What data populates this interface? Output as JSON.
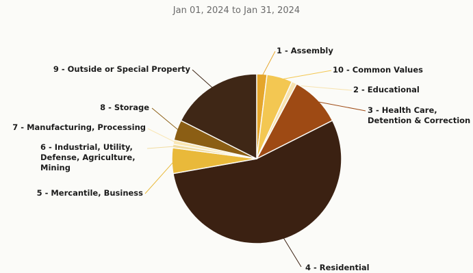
{
  "chart_data": {
    "type": "pie",
    "title": "",
    "subtitle": "Jan 01, 2024 to Jan 31, 2024",
    "slices": [
      {
        "id": "assembly",
        "label": [
          "1 - Assembly"
        ],
        "value": 2,
        "color": "#e5a62c"
      },
      {
        "id": "common-values",
        "label": [
          "10 - Common Values"
        ],
        "value": 5,
        "color": "#f3c752"
      },
      {
        "id": "educational",
        "label": [
          "2 - Educational"
        ],
        "value": 1,
        "color": "#f7e3b0"
      },
      {
        "id": "health-care",
        "label": [
          "3 - Health Care,",
          "Detention & Correction"
        ],
        "value": 10,
        "color": "#9e4a14"
      },
      {
        "id": "residential",
        "label": [
          "4 - Residential"
        ],
        "value": 56,
        "color": "#3b2112"
      },
      {
        "id": "mercantile",
        "label": [
          "5 - Mercantile, Business"
        ],
        "value": 5,
        "color": "#e9b93a"
      },
      {
        "id": "industrial",
        "label": [
          "6 - Industrial, Utility,",
          "Defense, Agriculture,",
          "Mining"
        ],
        "value": 0.7,
        "color": "#f1dca0"
      },
      {
        "id": "manufacturing",
        "label": [
          "7 - Manufacturing, Processing"
        ],
        "value": 0.8,
        "color": "#fae7b4"
      },
      {
        "id": "storage",
        "label": [
          "8 - Storage"
        ],
        "value": 4,
        "color": "#8b5e14"
      },
      {
        "id": "outside",
        "label": [
          "9 - Outside or Special Property"
        ],
        "value": 18,
        "color": "#3f2716"
      }
    ]
  }
}
